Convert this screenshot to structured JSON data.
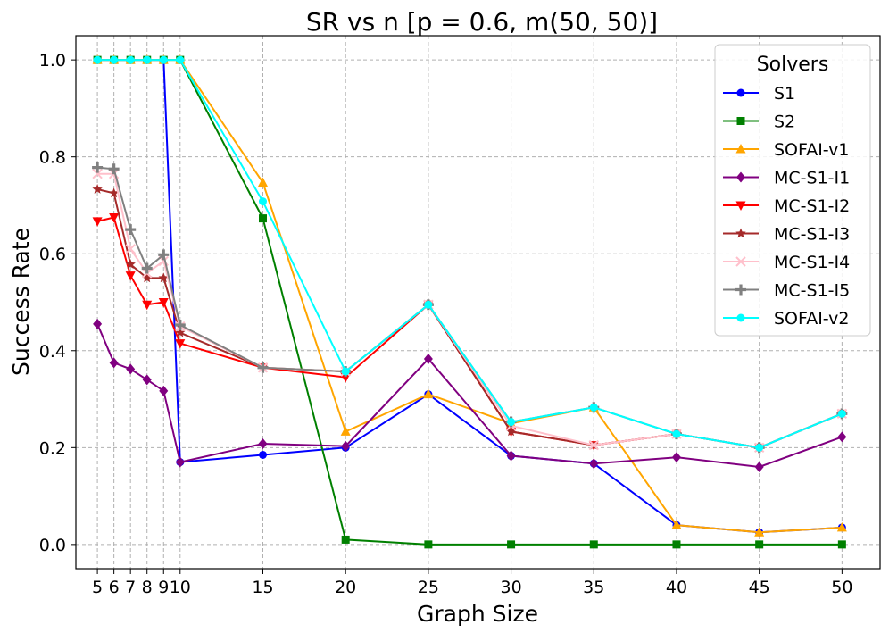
{
  "chart_data": {
    "type": "line",
    "title": "SR vs n [p = 0.6, m(50, 50)]",
    "xlabel": "Graph Size",
    "ylabel": "Success Rate",
    "x": [
      5,
      6,
      7,
      8,
      9,
      10,
      15,
      20,
      25,
      30,
      35,
      40,
      45,
      50
    ],
    "xticks": [
      5,
      6,
      7,
      8,
      9,
      10,
      15,
      20,
      25,
      30,
      35,
      40,
      45,
      50
    ],
    "xtick_labels": [
      "5",
      "6",
      "7",
      "8",
      "9",
      "10",
      "15",
      "20",
      "25",
      "30",
      "35",
      "40",
      "45",
      "50"
    ],
    "yticks": [
      0.0,
      0.2,
      0.4,
      0.6,
      0.8,
      1.0
    ],
    "ytick_labels": [
      "0.0",
      "0.2",
      "0.4",
      "0.6",
      "0.8",
      "1.0"
    ],
    "xlim": [
      3.7,
      52.3
    ],
    "ylim": [
      -0.05,
      1.05
    ],
    "grid": true,
    "legend_title": "Solvers",
    "legend_position": "top-right",
    "series": [
      {
        "name": "S1",
        "color": "#0000ff",
        "marker": "circle",
        "values": [
          1.0,
          1.0,
          1.0,
          1.0,
          1.0,
          0.17,
          0.185,
          0.2,
          0.31,
          0.183,
          0.167,
          0.04,
          0.025,
          0.035
        ]
      },
      {
        "name": "S2",
        "color": "#008000",
        "marker": "square",
        "values": [
          1.0,
          1.0,
          1.0,
          1.0,
          1.0,
          1.0,
          0.673,
          0.01,
          0.0,
          0.0,
          0.0,
          0.0,
          0.0,
          0.0
        ]
      },
      {
        "name": "SOFAI-v1",
        "color": "#ffa500",
        "marker": "triangle-up",
        "values": [
          1.0,
          1.0,
          1.0,
          1.0,
          1.0,
          1.0,
          0.747,
          0.233,
          0.31,
          0.25,
          0.283,
          0.04,
          0.025,
          0.035
        ]
      },
      {
        "name": "MC-S1-I1",
        "color": "#800080",
        "marker": "diamond",
        "values": [
          0.455,
          0.375,
          0.362,
          0.34,
          0.317,
          0.17,
          0.208,
          0.203,
          0.383,
          0.183,
          0.167,
          0.18,
          0.16,
          0.222
        ]
      },
      {
        "name": "MC-S1-I2",
        "color": "#ff0000",
        "marker": "triangle-down",
        "values": [
          0.667,
          0.675,
          0.555,
          0.495,
          0.5,
          0.415,
          0.365,
          0.345,
          0.495,
          0.233,
          0.205,
          0.228,
          0.2,
          0.27
        ]
      },
      {
        "name": "MC-S1-I3",
        "color": "#a52a2a",
        "marker": "star",
        "values": [
          0.733,
          0.725,
          0.578,
          0.55,
          0.55,
          0.437,
          0.365,
          0.357,
          0.495,
          0.233,
          0.205,
          0.228,
          0.2,
          0.27
        ]
      },
      {
        "name": "MC-S1-I4",
        "color": "#ffc0cb",
        "marker": "x",
        "values": [
          0.765,
          0.765,
          0.61,
          0.56,
          0.585,
          0.45,
          0.365,
          0.357,
          0.495,
          0.245,
          0.205,
          0.228,
          0.2,
          0.27
        ]
      },
      {
        "name": "MC-S1-I5",
        "color": "#808080",
        "marker": "plus",
        "values": [
          0.778,
          0.775,
          0.65,
          0.57,
          0.598,
          0.453,
          0.365,
          0.357,
          0.495,
          0.253,
          0.283,
          0.228,
          0.2,
          0.27
        ]
      },
      {
        "name": "SOFAI-v2",
        "color": "#00ffff",
        "marker": "circle",
        "values": [
          1.0,
          1.0,
          1.0,
          1.0,
          1.0,
          1.0,
          0.708,
          0.357,
          0.495,
          0.253,
          0.283,
          0.228,
          0.2,
          0.27
        ]
      }
    ]
  }
}
